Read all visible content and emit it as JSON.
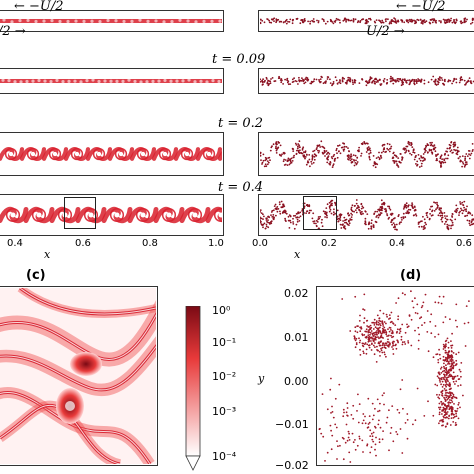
{
  "top": {
    "arrow_left_label": "← −U/2",
    "arrow_right_left_label": "/2 →",
    "arrow_left_right_label": "← −U/2",
    "arrow_right_right_label": "U/2 →"
  },
  "times": [
    "t = 0.09",
    "t = 0.2",
    "t = 0.4"
  ],
  "left_axis": {
    "ticks": [
      "0.4",
      "0.6",
      "0.8",
      "1.0"
    ],
    "xlabel": "x"
  },
  "right_axis": {
    "ticks": [
      "0.0",
      "0.2",
      "0.4",
      "0.6"
    ],
    "xlabel": "x"
  },
  "panels": {
    "c": "(c)",
    "d": "(d)"
  },
  "colorbar": {
    "ticks": [
      "10⁰",
      "10⁻¹",
      "10⁻²",
      "10⁻³",
      "10⁻⁴"
    ],
    "colors": {
      "high": "#7a0a14",
      "mid": "#e83a3a",
      "low": "#ffffff"
    }
  },
  "scatter": {
    "ylabel": "y",
    "yticks": [
      "0.02",
      "0.01",
      "0.00",
      "−0.01",
      "−0.02"
    ],
    "point_color": "#a01828"
  },
  "colors": {
    "field": "#d81e2c",
    "particles": "#8b1020"
  }
}
